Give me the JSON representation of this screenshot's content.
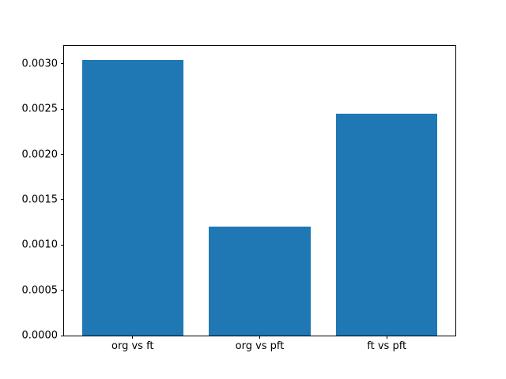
{
  "chart_data": {
    "type": "bar",
    "title": "",
    "xlabel": "",
    "ylabel": "",
    "categories": [
      "org vs ft",
      "org vs pft",
      "ft vs pft"
    ],
    "values": [
      0.00304,
      0.0012,
      0.00245
    ],
    "bar_width": 0.8,
    "xlim": [
      -0.54,
      2.54
    ],
    "ylim": [
      0,
      0.0032
    ],
    "yticks": [
      0.0,
      0.0005,
      0.001,
      0.0015,
      0.002,
      0.0025,
      0.003
    ],
    "ytick_labels": [
      "0.0000",
      "0.0005",
      "0.0010",
      "0.0015",
      "0.0020",
      "0.0025",
      "0.0030"
    ],
    "grid": false,
    "legend": null,
    "colors": {
      "bar": "#1f77b4",
      "axis": "#000000",
      "background": "#ffffff",
      "tick_text": "#000000"
    }
  }
}
